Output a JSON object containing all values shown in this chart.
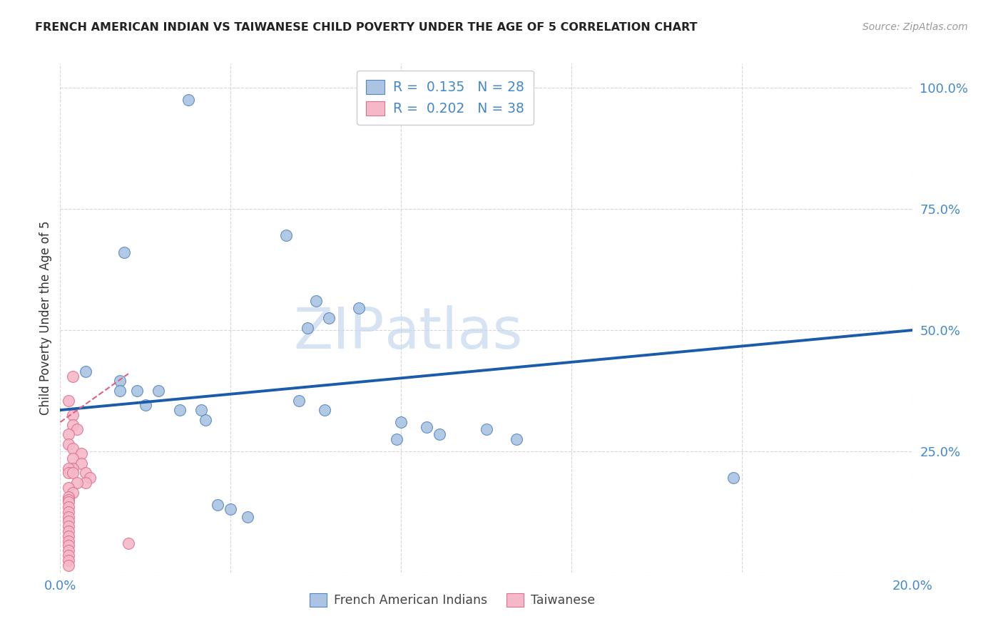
{
  "title": "FRENCH AMERICAN INDIAN VS TAIWANESE CHILD POVERTY UNDER THE AGE OF 5 CORRELATION CHART",
  "source": "Source: ZipAtlas.com",
  "ylabel_label": "Child Poverty Under the Age of 5",
  "watermark_zip": "ZIP",
  "watermark_atlas": "atlas",
  "xlim": [
    0.0,
    0.2
  ],
  "ylim": [
    0.0,
    1.05
  ],
  "xticks": [
    0.0,
    0.04,
    0.08,
    0.12,
    0.16,
    0.2
  ],
  "yticks": [
    0.0,
    0.25,
    0.5,
    0.75,
    1.0
  ],
  "ytick_labels": [
    "",
    "25.0%",
    "50.0%",
    "75.0%",
    "100.0%"
  ],
  "xtick_labels": [
    "0.0%",
    "",
    "",
    "",
    "",
    "20.0%"
  ],
  "blue_scatter": [
    [
      0.03,
      0.975
    ],
    [
      0.015,
      0.66
    ],
    [
      0.053,
      0.695
    ],
    [
      0.06,
      0.56
    ],
    [
      0.07,
      0.545
    ],
    [
      0.063,
      0.525
    ],
    [
      0.058,
      0.505
    ],
    [
      0.006,
      0.415
    ],
    [
      0.014,
      0.395
    ],
    [
      0.014,
      0.375
    ],
    [
      0.018,
      0.375
    ],
    [
      0.023,
      0.375
    ],
    [
      0.02,
      0.345
    ],
    [
      0.028,
      0.335
    ],
    [
      0.033,
      0.335
    ],
    [
      0.034,
      0.315
    ],
    [
      0.056,
      0.355
    ],
    [
      0.062,
      0.335
    ],
    [
      0.08,
      0.31
    ],
    [
      0.086,
      0.3
    ],
    [
      0.089,
      0.285
    ],
    [
      0.079,
      0.275
    ],
    [
      0.1,
      0.295
    ],
    [
      0.107,
      0.275
    ],
    [
      0.037,
      0.14
    ],
    [
      0.04,
      0.13
    ],
    [
      0.044,
      0.115
    ],
    [
      0.158,
      0.195
    ]
  ],
  "pink_scatter": [
    [
      0.003,
      0.405
    ],
    [
      0.002,
      0.355
    ],
    [
      0.003,
      0.325
    ],
    [
      0.003,
      0.305
    ],
    [
      0.004,
      0.295
    ],
    [
      0.002,
      0.285
    ],
    [
      0.002,
      0.265
    ],
    [
      0.003,
      0.255
    ],
    [
      0.005,
      0.245
    ],
    [
      0.003,
      0.235
    ],
    [
      0.005,
      0.225
    ],
    [
      0.003,
      0.215
    ],
    [
      0.002,
      0.215
    ],
    [
      0.002,
      0.205
    ],
    [
      0.003,
      0.205
    ],
    [
      0.006,
      0.205
    ],
    [
      0.007,
      0.195
    ],
    [
      0.006,
      0.185
    ],
    [
      0.004,
      0.185
    ],
    [
      0.002,
      0.175
    ],
    [
      0.003,
      0.165
    ],
    [
      0.002,
      0.155
    ],
    [
      0.002,
      0.15
    ],
    [
      0.002,
      0.145
    ],
    [
      0.002,
      0.135
    ],
    [
      0.002,
      0.125
    ],
    [
      0.002,
      0.115
    ],
    [
      0.002,
      0.105
    ],
    [
      0.002,
      0.095
    ],
    [
      0.002,
      0.085
    ],
    [
      0.002,
      0.075
    ],
    [
      0.002,
      0.065
    ],
    [
      0.002,
      0.055
    ],
    [
      0.016,
      0.06
    ],
    [
      0.002,
      0.045
    ],
    [
      0.002,
      0.035
    ],
    [
      0.002,
      0.025
    ],
    [
      0.002,
      0.015
    ]
  ],
  "blue_line_x": [
    0.0,
    0.2
  ],
  "blue_line_y": [
    0.335,
    0.5
  ],
  "pink_line_x": [
    0.0,
    0.016
  ],
  "pink_line_y": [
    0.31,
    0.41
  ],
  "blue_color": "#aac4e2",
  "blue_edge_color": "#5585c5",
  "blue_line_color": "#1a5caa",
  "pink_color": "#f5b8c8",
  "pink_edge_color": "#e07090",
  "pink_line_color": "#e06080",
  "R_blue": "0.135",
  "N_blue": "28",
  "R_pink": "0.202",
  "N_pink": "38",
  "legend_label_blue": "French American Indians",
  "legend_label_pink": "Taiwanese",
  "title_color": "#222222",
  "axis_tick_color": "#4488cc",
  "grid_color": "#cccccc",
  "scatter_size": 130
}
